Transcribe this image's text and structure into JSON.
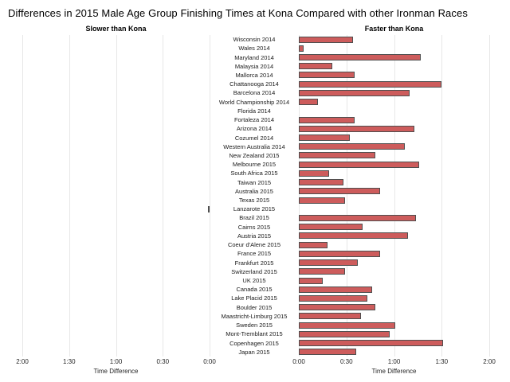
{
  "chart": {
    "title": "Differences in 2015 Male Age Group Finishing Times at Kona Compared with other Ironman Races",
    "left_header": "Slower than Kona",
    "right_header": "Faster than Kona",
    "axis_title": "Time Difference"
  },
  "chart_data": {
    "type": "bar",
    "orientation": "horizontal-diverging",
    "title": "Differences in 2015 Male Age Group Finishing Times at Kona Compared with other Ironman Races",
    "left_panel_label": "Slower than Kona",
    "right_panel_label": "Faster than Kona",
    "xlabel": "Time Difference",
    "axis_ticks_left": [
      "2:00",
      "1:30",
      "1:00",
      "0:30",
      "0:00"
    ],
    "axis_ticks_right": [
      "0:00",
      "0:30",
      "1:00",
      "1:30",
      "2:00"
    ],
    "axis_max_minutes": 120,
    "value_note": "minutes faster than Kona; negative = slower than Kona; 0 = no bar shown",
    "grid": true,
    "legend": "none",
    "categories": [
      "Wisconsin 2014",
      "Wales 2014",
      "Maryland 2014",
      "Malaysia 2014",
      "Mallorca 2014",
      "Chattanooga 2014",
      "Barcelona 2014",
      "World Championship 2014",
      "Florida 2014",
      "Fortaleza 2014",
      "Arizona 2014",
      "Cozumel 2014",
      "Western Australia 2014",
      "New Zealand 2015",
      "Melbourne 2015",
      "South Africa 2015",
      "Taiwan 2015",
      "Australia 2015",
      "Texas 2015",
      "Lanzarote 2015",
      "Brazil 2015",
      "Cairns 2015",
      "Austria 2015",
      "Coeur d'Alene 2015",
      "France 2015",
      "Frankfurt 2015",
      "Switzerland 2015",
      "UK 2015",
      "Canada 2015",
      "Lake Placid 2015",
      "Boulder 2015",
      "Maastricht-Limburg 2015",
      "Sweden 2015",
      "Mont-Tremblant 2015",
      "Copenhagen 2015",
      "Japan 2015"
    ],
    "values_minutes": [
      34,
      3,
      77,
      21,
      35,
      90,
      70,
      12,
      0,
      35,
      73,
      32,
      67,
      48,
      76,
      19,
      28,
      51,
      29,
      -1,
      74,
      40,
      69,
      18,
      51,
      37,
      29,
      15,
      46,
      43,
      48,
      39,
      61,
      57,
      91,
      36
    ],
    "colors": {
      "bar_fill": "#cd5c5c",
      "bar_border": "#4f4f4f",
      "gridline": "#e7e7e7",
      "text": "#000000"
    }
  }
}
